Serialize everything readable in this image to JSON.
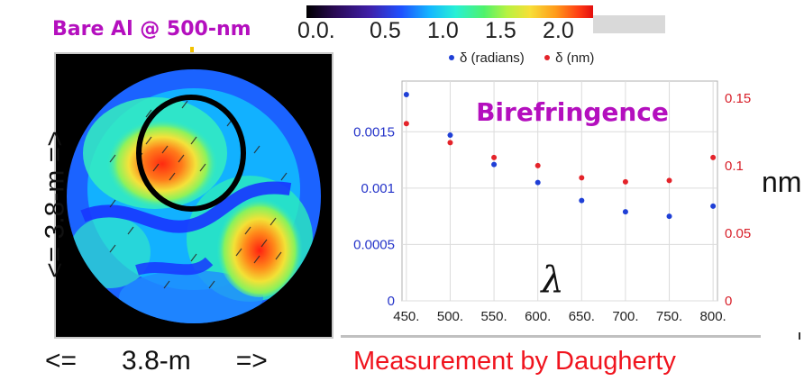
{
  "header": {
    "annotation": "Bare Al @ 500-nm"
  },
  "colorbar": {
    "ticks": [
      "0.0.",
      "0.5",
      "1.0",
      "1.5",
      "2.0"
    ]
  },
  "map": {
    "dimension_vertical": "<=   3.8-m   =>",
    "dimension_horizontal": "<=      3.8-m      =>"
  },
  "chart_data": {
    "type": "scatter",
    "title": "Birefringence",
    "x": [
      450,
      500,
      550,
      600,
      650,
      700,
      750,
      800
    ],
    "xtick_labels": [
      "450.",
      "500.",
      "550.",
      "600.",
      "650.",
      "700.",
      "750.",
      "800."
    ],
    "xlabel": "λ",
    "xlim": [
      445,
      805
    ],
    "series": [
      {
        "name": "δ (radians)",
        "axis": "left",
        "color": "#1f3fd6",
        "values": [
          0.00183,
          0.00147,
          0.00121,
          0.00105,
          0.00089,
          0.00079,
          0.00075,
          0.00084
        ]
      },
      {
        "name": "δ (nm)",
        "axis": "right",
        "color": "#e4232a",
        "values": [
          0.131,
          0.117,
          0.106,
          0.1,
          0.091,
          0.088,
          0.089,
          0.106
        ]
      }
    ],
    "y_left": {
      "lim": [
        0,
        0.00195
      ],
      "tick_values": [
        0,
        0.0005,
        0.001,
        0.0015
      ],
      "tick_labels": [
        "0",
        "0.0005",
        "0.001",
        "0.0015"
      ],
      "color": "#2433c9"
    },
    "y_right": {
      "lim": [
        0,
        0.1625
      ],
      "tick_values": [
        0,
        0.05,
        0.1,
        0.15
      ],
      "tick_labels": [
        "0",
        "0.05",
        "0.1",
        "0.15"
      ],
      "color": "#d8202a",
      "unit": "nm"
    },
    "grid": true,
    "legend_position": "top"
  },
  "footer": {
    "credit": "Measurement by Daugherty"
  }
}
